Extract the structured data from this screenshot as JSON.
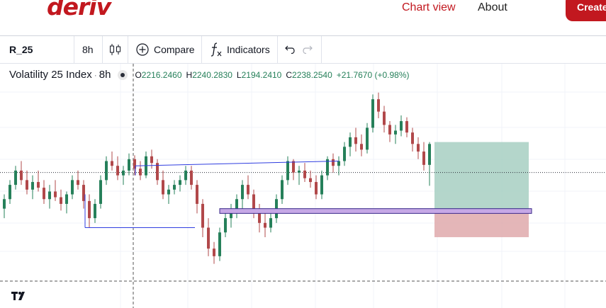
{
  "header": {
    "logo_text": "deriv",
    "nav": [
      {
        "label": "Chart view"
      },
      {
        "label": "About"
      }
    ],
    "create_label": "Create"
  },
  "toolbar": {
    "symbol": "R_25",
    "interval": "8h",
    "chart_type_icon": "candles-icon",
    "compare_label": "Compare",
    "indicators_label": "Indicators",
    "undo_icon": "undo-icon",
    "redo_icon": "redo-icon"
  },
  "legend": {
    "symbol_name": "Volatility 25 Index",
    "separator": "·",
    "interval": "8h",
    "open_label": "O",
    "open": "2216.2460",
    "high_label": "H",
    "high": "2240.2830",
    "low_label": "L",
    "low": "2194.2410",
    "close_label": "C",
    "close": "2238.2540",
    "change": "+21.7670 (+0.98%)"
  },
  "colors": {
    "brand": "#c2181f",
    "bull_candle": "#26805a",
    "bear_candle": "#b1484a",
    "change_text": "#26805a",
    "trendline": "#2f3de0",
    "range_fill": "#c6a8e6",
    "profit_zone": "#a7cfc2",
    "loss_zone": "#dfa9ab"
  },
  "chart_data": {
    "type": "candlestick",
    "candles": [
      [
        2170,
        2185,
        2160,
        2180
      ],
      [
        2180,
        2200,
        2175,
        2195
      ],
      [
        2195,
        2215,
        2190,
        2210
      ],
      [
        2210,
        2220,
        2195,
        2200
      ],
      [
        2200,
        2210,
        2185,
        2190
      ],
      [
        2190,
        2205,
        2180,
        2198
      ],
      [
        2198,
        2210,
        2188,
        2192
      ],
      [
        2192,
        2200,
        2175,
        2180
      ],
      [
        2180,
        2195,
        2170,
        2188
      ],
      [
        2188,
        2200,
        2178,
        2182
      ],
      [
        2182,
        2190,
        2168,
        2175
      ],
      [
        2175,
        2188,
        2165,
        2185
      ],
      [
        2185,
        2205,
        2180,
        2200
      ],
      [
        2200,
        2210,
        2190,
        2195
      ],
      [
        2195,
        2200,
        2170,
        2178
      ],
      [
        2178,
        2185,
        2150,
        2160
      ],
      [
        2160,
        2180,
        2155,
        2175
      ],
      [
        2175,
        2205,
        2170,
        2200
      ],
      [
        2200,
        2225,
        2195,
        2220
      ],
      [
        2220,
        2230,
        2210,
        2215
      ],
      [
        2215,
        2225,
        2200,
        2205
      ],
      [
        2205,
        2215,
        2195,
        2210
      ],
      [
        2210,
        2228,
        2205,
        2222
      ],
      [
        2222,
        2226,
        2205,
        2212
      ],
      [
        2212,
        2220,
        2200,
        2205
      ],
      [
        2205,
        2230,
        2202,
        2225
      ],
      [
        2225,
        2232,
        2212,
        2218
      ],
      [
        2218,
        2222,
        2195,
        2200
      ],
      [
        2200,
        2210,
        2180,
        2185
      ],
      [
        2185,
        2195,
        2175,
        2190
      ],
      [
        2190,
        2200,
        2185,
        2195
      ],
      [
        2195,
        2205,
        2188,
        2200
      ],
      [
        2200,
        2215,
        2195,
        2210
      ],
      [
        2210,
        2215,
        2190,
        2195
      ],
      [
        2195,
        2200,
        2165,
        2175
      ],
      [
        2175,
        2180,
        2140,
        2150
      ],
      [
        2150,
        2160,
        2120,
        2128
      ],
      [
        2128,
        2135,
        2112,
        2120
      ],
      [
        2120,
        2150,
        2115,
        2145
      ],
      [
        2145,
        2165,
        2140,
        2160
      ],
      [
        2160,
        2175,
        2150,
        2170
      ],
      [
        2170,
        2185,
        2160,
        2180
      ],
      [
        2180,
        2200,
        2170,
        2195
      ],
      [
        2195,
        2205,
        2180,
        2185
      ],
      [
        2185,
        2190,
        2160,
        2170
      ],
      [
        2170,
        2175,
        2145,
        2155
      ],
      [
        2155,
        2165,
        2140,
        2150
      ],
      [
        2150,
        2165,
        2145,
        2160
      ],
      [
        2160,
        2185,
        2155,
        2180
      ],
      [
        2180,
        2205,
        2175,
        2200
      ],
      [
        2200,
        2225,
        2195,
        2220
      ],
      [
        2220,
        2222,
        2200,
        2208
      ],
      [
        2208,
        2215,
        2195,
        2210
      ],
      [
        2210,
        2218,
        2198,
        2202
      ],
      [
        2202,
        2210,
        2192,
        2198
      ],
      [
        2198,
        2205,
        2180,
        2185
      ],
      [
        2185,
        2210,
        2180,
        2205
      ],
      [
        2205,
        2225,
        2200,
        2222
      ],
      [
        2222,
        2228,
        2208,
        2215
      ],
      [
        2215,
        2225,
        2205,
        2220
      ],
      [
        2220,
        2240,
        2215,
        2235
      ],
      [
        2235,
        2250,
        2225,
        2245
      ],
      [
        2245,
        2255,
        2230,
        2238
      ],
      [
        2238,
        2248,
        2225,
        2232
      ],
      [
        2232,
        2260,
        2228,
        2255
      ],
      [
        2255,
        2290,
        2250,
        2285
      ],
      [
        2285,
        2292,
        2265,
        2272
      ],
      [
        2272,
        2278,
        2250,
        2258
      ],
      [
        2258,
        2262,
        2240,
        2248
      ],
      [
        2248,
        2258,
        2238,
        2252
      ],
      [
        2252,
        2268,
        2246,
        2262
      ],
      [
        2262,
        2266,
        2245,
        2250
      ],
      [
        2250,
        2255,
        2230,
        2238
      ],
      [
        2238,
        2245,
        2222,
        2230
      ],
      [
        2230,
        2240,
        2210,
        2216
      ],
      [
        2216,
        2240,
        2194,
        2238
      ]
    ],
    "levels": {
      "upper_zone_top": 2240,
      "entry": 2208,
      "range_top": 2170,
      "range_bottom": 2165,
      "stop": 2140
    }
  }
}
